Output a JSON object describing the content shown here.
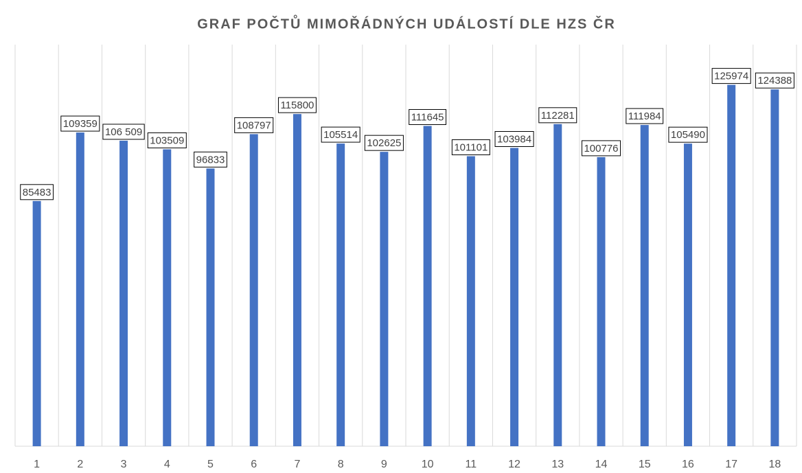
{
  "chart_data": {
    "type": "bar",
    "title": "GRAF POČTŮ MIMOŘÁDNÝCH UDÁLOSTÍ DLE HZS ČR",
    "categories": [
      "1",
      "2",
      "3",
      "4",
      "5",
      "6",
      "7",
      "8",
      "9",
      "10",
      "11",
      "12",
      "13",
      "14",
      "15",
      "16",
      "17",
      "18"
    ],
    "values": [
      85483,
      109359,
      106509,
      103509,
      96833,
      108797,
      115800,
      105514,
      102625,
      111645,
      101101,
      103984,
      112281,
      100776,
      111984,
      105490,
      125974,
      124388
    ],
    "value_labels": [
      "85483",
      "109359",
      "106 509",
      "103509",
      "96833",
      "108797",
      "115800",
      "105514",
      "102625",
      "111645",
      "101101",
      "103984",
      "112281",
      "100776",
      "111984",
      "105490",
      "125974",
      "124388"
    ],
    "color": "#4472c4",
    "ylim": [
      0,
      140000
    ]
  }
}
